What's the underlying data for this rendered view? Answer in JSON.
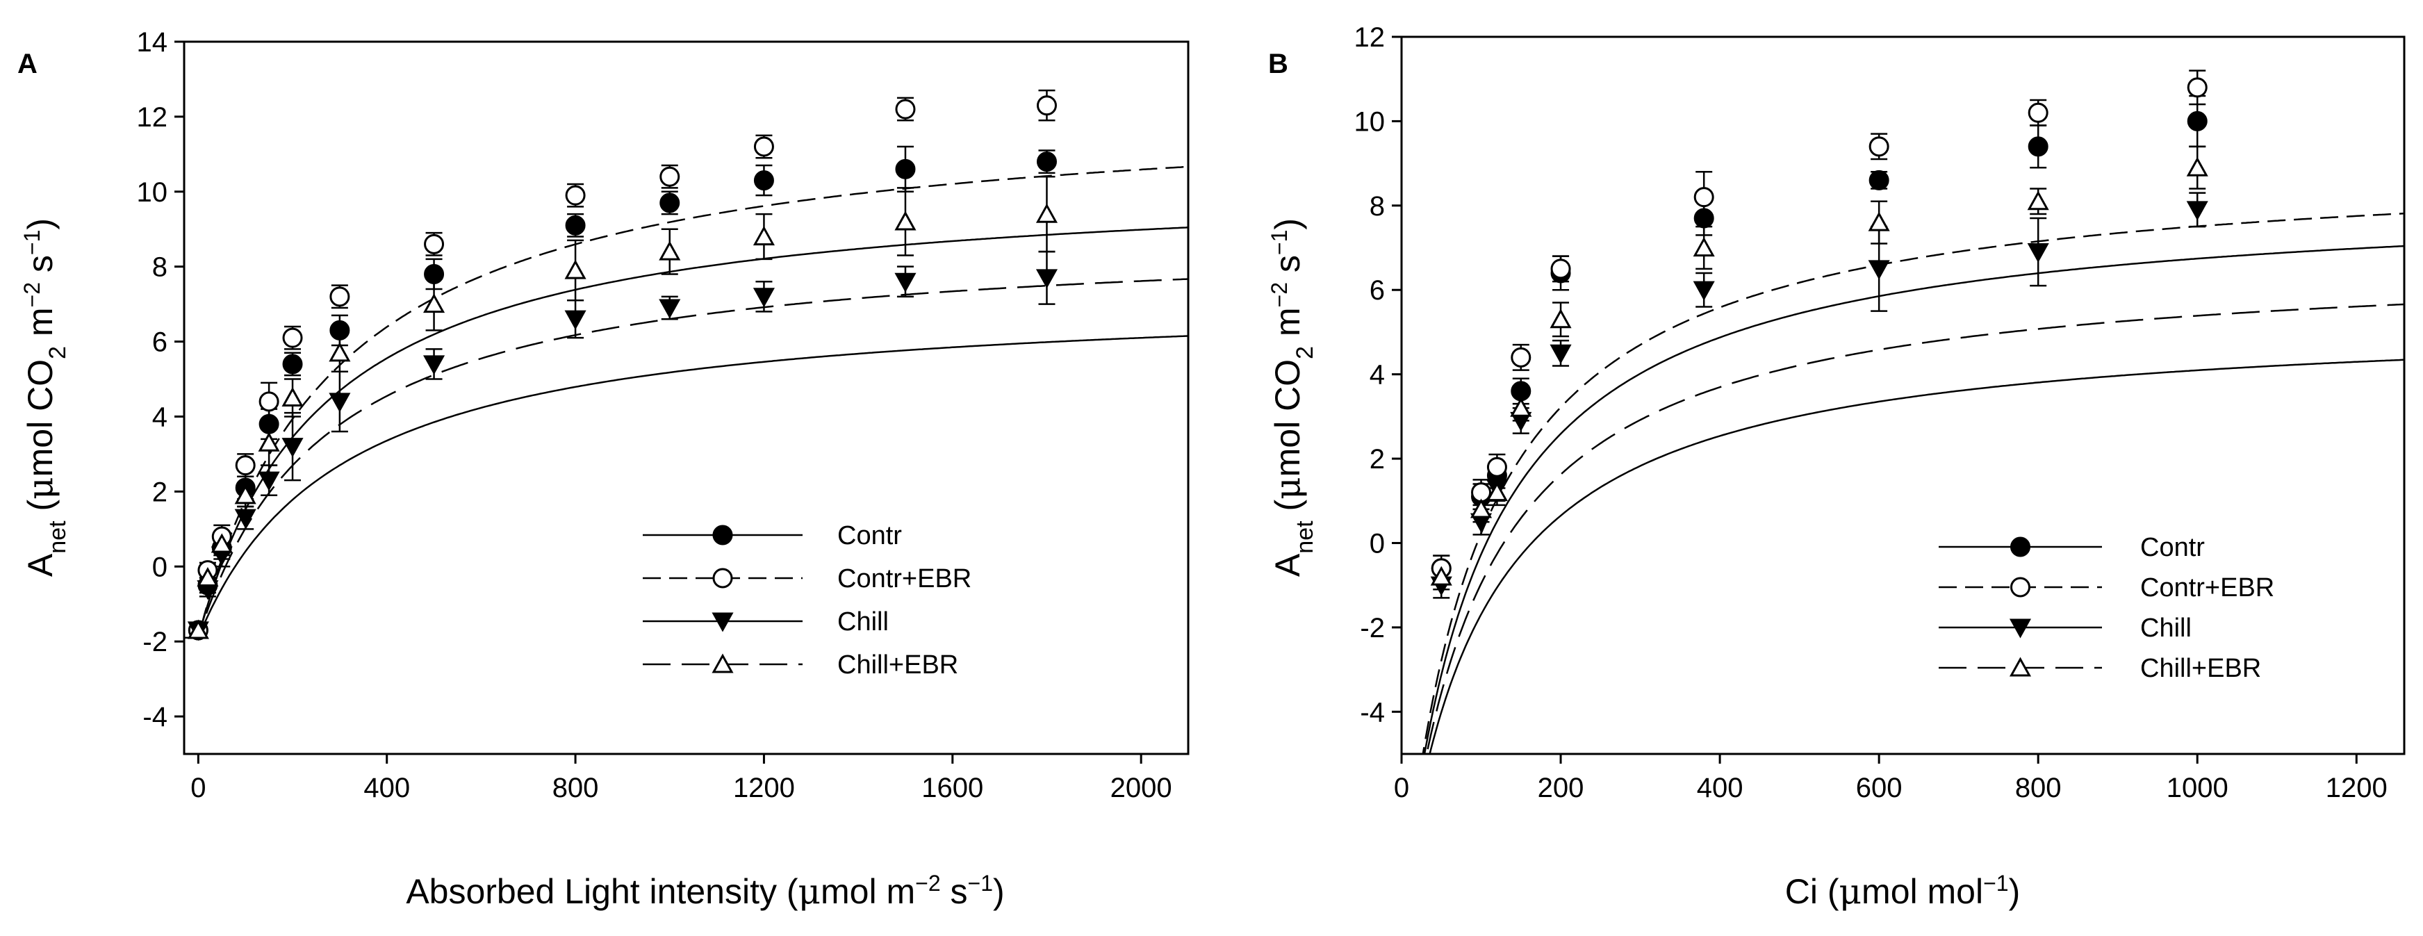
{
  "chart_data": [
    {
      "type": "scatter",
      "panel": "A",
      "title": "",
      "xlabel": {
        "pre": "Absorbed Light intensity (",
        "mu": "μ",
        "unit": "mol m",
        "sup1": "−2",
        "mid": " s",
        "sup2": "−1",
        "post": ")"
      },
      "ylabel": {
        "base": "A",
        "sub": "net",
        "open": " (",
        "mu": "μ",
        "unit": "mol CO",
        "sub2": "2",
        "m": " m",
        "sup1": "−2",
        "s": " s",
        "sup2": "−1",
        "close": ")"
      },
      "xlim": [
        -30,
        2100
      ],
      "ylim": [
        -5,
        14
      ],
      "xticks": [
        0,
        400,
        800,
        1200,
        1600,
        2000
      ],
      "yticks": [
        -4,
        -2,
        0,
        2,
        4,
        6,
        8,
        10,
        12,
        14
      ],
      "legend_position": "center-right",
      "series": [
        {
          "name": "Contr",
          "marker": "filled-circle",
          "line": "solid",
          "fit": {
            "amax": 12.3,
            "k": 260,
            "r": 1.9
          },
          "points": [
            {
              "x": 0,
              "y": -1.7,
              "err": 0.2
            },
            {
              "x": 20,
              "y": -0.5,
              "err": 0.2
            },
            {
              "x": 50,
              "y": 0.5,
              "err": 0.3
            },
            {
              "x": 100,
              "y": 2.1,
              "err": 0.3
            },
            {
              "x": 150,
              "y": 3.8,
              "err": 0.4
            },
            {
              "x": 200,
              "y": 5.4,
              "err": 0.3
            },
            {
              "x": 300,
              "y": 6.3,
              "err": 0.4
            },
            {
              "x": 500,
              "y": 7.8,
              "err": 0.4
            },
            {
              "x": 800,
              "y": 9.1,
              "err": 0.3
            },
            {
              "x": 1000,
              "y": 9.7,
              "err": 0.3
            },
            {
              "x": 1200,
              "y": 10.3,
              "err": 0.4
            },
            {
              "x": 1500,
              "y": 10.6,
              "err": 0.6
            },
            {
              "x": 1800,
              "y": 10.8,
              "err": 0.3
            }
          ]
        },
        {
          "name": "Contr+EBR",
          "marker": "open-circle",
          "line": "dashed",
          "fit": {
            "amax": 14.3,
            "k": 290,
            "r": 1.9
          },
          "points": [
            {
              "x": 0,
              "y": -1.7,
              "err": 0.2
            },
            {
              "x": 20,
              "y": -0.1,
              "err": 0.2
            },
            {
              "x": 50,
              "y": 0.8,
              "err": 0.3
            },
            {
              "x": 100,
              "y": 2.7,
              "err": 0.3
            },
            {
              "x": 150,
              "y": 4.4,
              "err": 0.5
            },
            {
              "x": 200,
              "y": 6.1,
              "err": 0.3
            },
            {
              "x": 300,
              "y": 7.2,
              "err": 0.3
            },
            {
              "x": 500,
              "y": 8.6,
              "err": 0.3
            },
            {
              "x": 800,
              "y": 9.9,
              "err": 0.3
            },
            {
              "x": 1000,
              "y": 10.4,
              "err": 0.3
            },
            {
              "x": 1200,
              "y": 11.2,
              "err": 0.3
            },
            {
              "x": 1500,
              "y": 12.2,
              "err": 0.3
            },
            {
              "x": 1800,
              "y": 12.3,
              "err": 0.4
            }
          ]
        },
        {
          "name": "Chill",
          "marker": "filled-triangle-down",
          "line": "solid",
          "fit": {
            "amax": 9.2,
            "k": 300,
            "r": 1.9
          },
          "points": [
            {
              "x": 0,
              "y": -1.7,
              "err": 0.2
            },
            {
              "x": 20,
              "y": -0.6,
              "err": 0.2
            },
            {
              "x": 50,
              "y": 0.3,
              "err": 0.3
            },
            {
              "x": 100,
              "y": 1.3,
              "err": 0.3
            },
            {
              "x": 150,
              "y": 2.3,
              "err": 0.4
            },
            {
              "x": 200,
              "y": 3.2,
              "err": 0.9
            },
            {
              "x": 300,
              "y": 4.4,
              "err": 0.8
            },
            {
              "x": 500,
              "y": 5.4,
              "err": 0.4
            },
            {
              "x": 800,
              "y": 6.6,
              "err": 0.5
            },
            {
              "x": 1000,
              "y": 6.9,
              "err": 0.3
            },
            {
              "x": 1200,
              "y": 7.2,
              "err": 0.4
            },
            {
              "x": 1500,
              "y": 7.6,
              "err": 0.4
            },
            {
              "x": 1800,
              "y": 7.7,
              "err": 0.7
            }
          ]
        },
        {
          "name": "Chill+EBR",
          "marker": "open-triangle-up",
          "line": "long-dashed",
          "fit": {
            "amax": 10.8,
            "k": 270,
            "r": 1.9
          },
          "points": [
            {
              "x": 0,
              "y": -1.7,
              "err": 0.2
            },
            {
              "x": 20,
              "y": -0.3,
              "err": 0.2
            },
            {
              "x": 50,
              "y": 0.6,
              "err": 0.3
            },
            {
              "x": 100,
              "y": 1.9,
              "err": 0.3
            },
            {
              "x": 150,
              "y": 3.3,
              "err": 0.6
            },
            {
              "x": 200,
              "y": 4.5,
              "err": 0.5
            },
            {
              "x": 300,
              "y": 5.7,
              "err": 0.5
            },
            {
              "x": 500,
              "y": 7.0,
              "err": 0.7
            },
            {
              "x": 800,
              "y": 7.9,
              "err": 0.8
            },
            {
              "x": 1000,
              "y": 8.4,
              "err": 0.6
            },
            {
              "x": 1200,
              "y": 8.8,
              "err": 0.6
            },
            {
              "x": 1500,
              "y": 9.2,
              "err": 0.9
            },
            {
              "x": 1800,
              "y": 9.4,
              "err": 1.0
            }
          ]
        }
      ]
    },
    {
      "type": "scatter",
      "panel": "B",
      "title": "",
      "xlabel": {
        "pre": "Ci (",
        "mu": "μ",
        "unit": "mol mol",
        "sup1": "−1",
        "mid": "",
        "sup2": "",
        "post": ")"
      },
      "ylabel": {
        "base": "A",
        "sub": "net",
        "open": " (",
        "mu": "μ",
        "unit": "mol CO",
        "sub2": "2",
        "m": " m",
        "sup1": "−2",
        "s": " s",
        "sup2": "−1",
        "close": ")"
      },
      "xlim": [
        0,
        1260
      ],
      "ylim": [
        -5,
        12
      ],
      "xticks": [
        0,
        200,
        400,
        600,
        800,
        1000,
        1200
      ],
      "yticks": [
        -4,
        -2,
        0,
        2,
        4,
        6,
        8,
        10,
        12
      ],
      "legend_position": "center-right",
      "series": [
        {
          "name": "Contr",
          "marker": "filled-circle",
          "line": "solid",
          "fit": {
            "amax": 14.9,
            "k": 115,
            "r": 6.6,
            "x0": 15
          },
          "points": [
            {
              "x": 50,
              "y": -0.6,
              "err": 0.3
            },
            {
              "x": 100,
              "y": 1.1,
              "err": 0.3
            },
            {
              "x": 120,
              "y": 1.6,
              "err": 0.3
            },
            {
              "x": 150,
              "y": 3.6,
              "err": 0.3
            },
            {
              "x": 200,
              "y": 6.4,
              "err": 0.4
            },
            {
              "x": 380,
              "y": 7.7,
              "err": 0.4
            },
            {
              "x": 600,
              "y": 8.6,
              "err": 0.2
            },
            {
              "x": 800,
              "y": 9.4,
              "err": 0.5
            },
            {
              "x": 1000,
              "y": 10.0,
              "err": 0.6
            }
          ]
        },
        {
          "name": "Contr+EBR",
          "marker": "open-circle",
          "line": "dashed",
          "fit": {
            "amax": 15.6,
            "k": 112,
            "r": 6.5,
            "x0": 15
          },
          "points": [
            {
              "x": 50,
              "y": -0.6,
              "err": 0.3
            },
            {
              "x": 100,
              "y": 1.2,
              "err": 0.3
            },
            {
              "x": 120,
              "y": 1.8,
              "err": 0.3
            },
            {
              "x": 150,
              "y": 4.4,
              "err": 0.3
            },
            {
              "x": 200,
              "y": 6.5,
              "err": 0.3
            },
            {
              "x": 380,
              "y": 8.2,
              "err": 0.6
            },
            {
              "x": 600,
              "y": 9.4,
              "err": 0.3
            },
            {
              "x": 800,
              "y": 10.2,
              "err": 0.3
            },
            {
              "x": 1000,
              "y": 10.8,
              "err": 0.4
            }
          ]
        },
        {
          "name": "Chill",
          "marker": "filled-triangle-down",
          "line": "solid",
          "fit": {
            "amax": 12.2,
            "k": 118,
            "r": 6.8,
            "x0": 15
          },
          "points": [
            {
              "x": 50,
              "y": -1.0,
              "err": 0.3
            },
            {
              "x": 100,
              "y": 0.5,
              "err": 0.3
            },
            {
              "x": 120,
              "y": 1.3,
              "err": 0.3
            },
            {
              "x": 150,
              "y": 2.9,
              "err": 0.3
            },
            {
              "x": 200,
              "y": 4.5,
              "err": 0.3
            },
            {
              "x": 380,
              "y": 6.0,
              "err": 0.4
            },
            {
              "x": 600,
              "y": 6.5,
              "err": 1.0
            },
            {
              "x": 800,
              "y": 6.9,
              "err": 0.8
            },
            {
              "x": 1000,
              "y": 7.9,
              "err": 0.4
            }
          ]
        },
        {
          "name": "Chill+EBR",
          "marker": "open-triangle-up",
          "line": "long-dashed",
          "fit": {
            "amax": 13.5,
            "k": 115,
            "r": 6.7,
            "x0": 15
          },
          "points": [
            {
              "x": 50,
              "y": -0.8,
              "err": 0.3
            },
            {
              "x": 100,
              "y": 0.8,
              "err": 0.3
            },
            {
              "x": 120,
              "y": 1.2,
              "err": 0.3
            },
            {
              "x": 150,
              "y": 3.2,
              "err": 0.3
            },
            {
              "x": 200,
              "y": 5.3,
              "err": 0.4
            },
            {
              "x": 380,
              "y": 7.0,
              "err": 0.5
            },
            {
              "x": 600,
              "y": 7.6,
              "err": 0.5
            },
            {
              "x": 800,
              "y": 8.1,
              "err": 0.3
            },
            {
              "x": 1000,
              "y": 8.9,
              "err": 0.5
            }
          ]
        }
      ]
    }
  ]
}
